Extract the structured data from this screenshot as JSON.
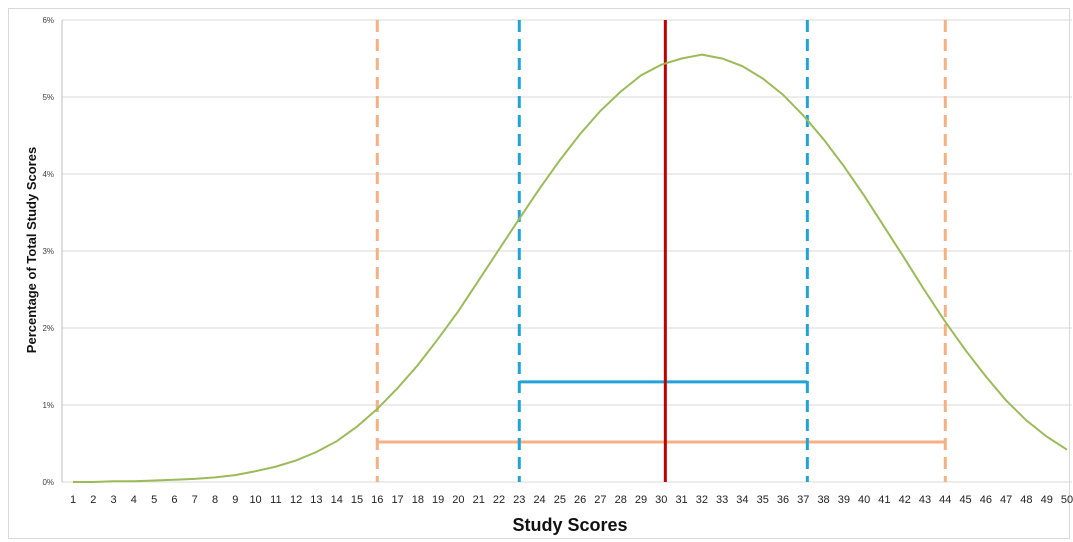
{
  "chart_data": {
    "type": "line",
    "title": "",
    "xlabel": "Study Scores",
    "ylabel": "Percentage of Total Study Scores",
    "x": [
      1,
      2,
      3,
      4,
      5,
      6,
      7,
      8,
      9,
      10,
      11,
      12,
      13,
      14,
      15,
      16,
      17,
      18,
      19,
      20,
      21,
      22,
      23,
      24,
      25,
      26,
      27,
      28,
      29,
      30,
      31,
      32,
      33,
      34,
      35,
      36,
      37,
      38,
      39,
      40,
      41,
      42,
      43,
      44,
      45,
      46,
      47,
      48,
      49,
      50
    ],
    "series": [
      {
        "color": "#9bbb59",
        "values": [
          0.0,
          0.0,
          0.01,
          0.01,
          0.02,
          0.02,
          0.03,
          0.05,
          0.07,
          0.11,
          0.16,
          0.23,
          0.33,
          0.45,
          0.61,
          0.8,
          1.02,
          1.28,
          1.57,
          1.88,
          2.22,
          2.57,
          2.93,
          3.28,
          3.62,
          3.95,
          4.25,
          4.52,
          4.75,
          4.95,
          5.1,
          5.21,
          5.28,
          5.3,
          5.27,
          5.19,
          5.05,
          4.86,
          4.62,
          4.34,
          4.01,
          3.65,
          3.27,
          2.88,
          2.49,
          2.11,
          1.75,
          1.42,
          1.12,
          0.86
        ]
      }
    ],
    "curve_override": [
      0.0,
      0.0,
      0.01,
      0.01,
      0.02,
      0.03,
      0.04,
      0.06,
      0.09,
      0.14,
      0.2,
      0.28,
      0.39,
      0.53,
      0.72,
      0.95,
      1.22,
      1.52,
      1.86,
      2.22,
      2.62,
      3.02,
      3.42,
      3.81,
      4.18,
      4.52,
      4.82,
      5.07,
      5.28,
      5.42,
      5.5,
      5.55,
      5.5,
      5.4,
      5.24,
      5.03,
      4.76,
      4.45,
      4.1,
      3.72,
      3.31,
      2.9,
      2.48,
      2.08,
      1.71,
      1.37,
      1.06,
      0.8,
      0.59,
      0.42
    ],
    "vertical_lines": [
      {
        "x": 16,
        "color": "#f4b183",
        "style": "dashed"
      },
      {
        "x": 23,
        "color": "#1fa3d9",
        "style": "dashed"
      },
      {
        "x": 30.2,
        "color": "#c00000",
        "style": "solid"
      },
      {
        "x": 37.2,
        "color": "#1fa3d9",
        "style": "dashed"
      },
      {
        "x": 44,
        "color": "#f4b183",
        "style": "dashed"
      }
    ],
    "horizontal_segments": [
      {
        "x1": 23,
        "x2": 37.2,
        "y": 1.3,
        "color": "#1fa3d9"
      },
      {
        "x1": 16,
        "x2": 44,
        "y": 0.52,
        "color": "#f4b183"
      }
    ],
    "ylim": [
      0,
      6
    ],
    "yticks": [
      0,
      1,
      2,
      3,
      4,
      5,
      6
    ],
    "ytick_labels": [
      "0%",
      "1%",
      "2%",
      "3%",
      "4%",
      "5%",
      "6%"
    ],
    "grid": true,
    "legend": "none"
  }
}
